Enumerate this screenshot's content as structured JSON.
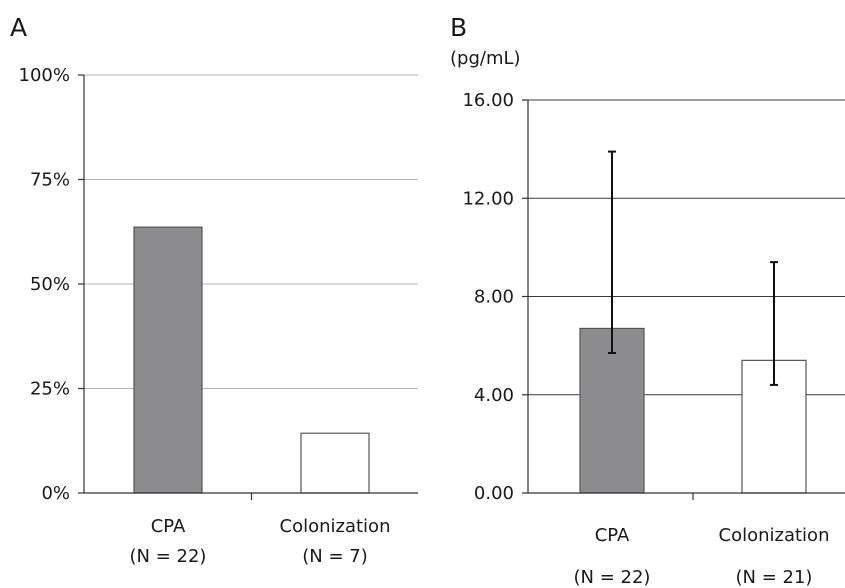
{
  "chart_data": [
    {
      "type": "bar",
      "panel_label": "A",
      "categories": [
        "CPA",
        "Colonization"
      ],
      "category_sublabels": [
        "(N = 22)",
        "(N = 7)"
      ],
      "values": [
        63.6,
        14.3
      ],
      "bar_colors": [
        "#8c8c8e",
        "#ffffff"
      ],
      "ylim": [
        0,
        100
      ],
      "yticks": [
        0,
        25,
        50,
        75,
        100
      ],
      "ytick_labels": [
        "0%",
        "25%",
        "50%",
        "75%",
        "100%"
      ],
      "grid": true
    },
    {
      "type": "bar",
      "panel_label": "B",
      "unit_label": "(pg/mL)",
      "categories": [
        "CPA",
        "Colonization"
      ],
      "category_sublabels": [
        "(N = 22)",
        "(N = 21)"
      ],
      "values": [
        6.7,
        5.4
      ],
      "error_low": [
        5.7,
        4.4
      ],
      "error_high": [
        13.9,
        9.4
      ],
      "bar_colors": [
        "#8c8c8e",
        "#ffffff"
      ],
      "ylim": [
        0,
        16
      ],
      "yticks": [
        0,
        4,
        8,
        12,
        16
      ],
      "ytick_labels": [
        "0.00",
        "4.00",
        "8.00",
        "12.00",
        "16.00"
      ],
      "grid": true
    }
  ]
}
